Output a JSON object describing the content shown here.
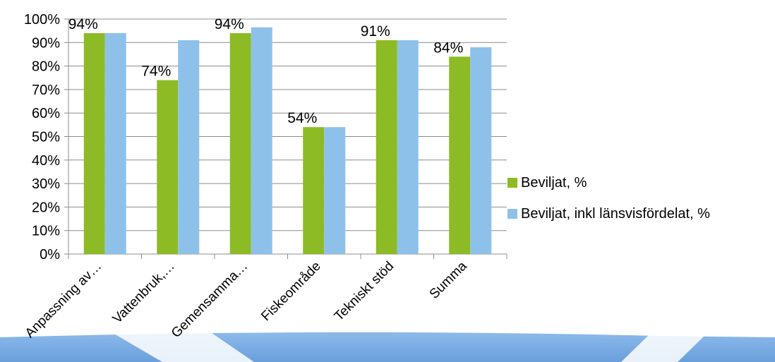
{
  "chart_data": {
    "type": "bar",
    "categories": [
      "Anpassning av…",
      "Vattenbruk,…",
      "Gemensamma…",
      "Fiskeområde",
      "Tekniskt stöd",
      "Summa"
    ],
    "series": [
      {
        "name": "Beviljat, %",
        "color": "#8dbb25",
        "values": [
          94,
          74,
          94,
          54,
          91,
          84
        ]
      },
      {
        "name": "Beviljat, inkl länsvisfördelat, %",
        "color": "#8ec1ea",
        "values": [
          94,
          91,
          96.5,
          54,
          91,
          88
        ]
      }
    ],
    "data_labels": [
      "94%",
      "74%",
      "94%",
      "54%",
      "91%",
      "84%"
    ],
    "ylim": [
      0,
      100
    ],
    "yticks": [
      "0%",
      "10%",
      "20%",
      "30%",
      "40%",
      "50%",
      "60%",
      "70%",
      "80%",
      "90%",
      "100%"
    ],
    "grid": true,
    "legend_position": "right",
    "title": "",
    "xlabel": "",
    "ylabel": ""
  },
  "background_swoosh_color": "#7fb0e6"
}
